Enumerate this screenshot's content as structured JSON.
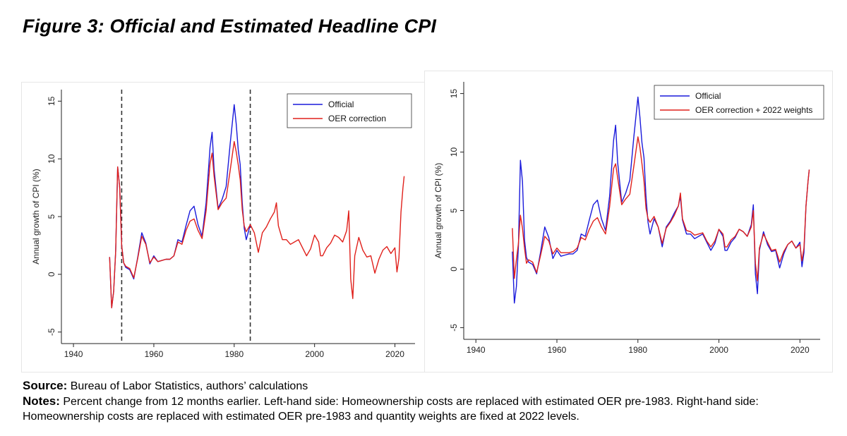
{
  "figure_title": "Figure 3: Official and Estimated Headline CPI",
  "source_label": "Source:",
  "source_text": "Bureau of Labor Statistics, authors’ calculations",
  "notes_label": "Notes:",
  "notes_text": "Percent change from 12 months earlier. Left-hand side: Homeownership costs are replaced with estimated OER pre-1983. Right-hand side: Homeownership costs are replaced with estimated OER pre-1983 and quantity weights are fixed at 2022 levels.",
  "colors": {
    "official": "#1a1adb",
    "correction": "#e0201b",
    "vline": "#333333"
  },
  "chart_data": [
    {
      "type": "line",
      "ylabel": "Annual growth of CPI (%)",
      "xlabel": "",
      "xlim": [
        1937,
        2025
      ],
      "ylim": [
        -6,
        16
      ],
      "xticks": [
        1940,
        1960,
        1980,
        2000,
        2020
      ],
      "yticks": [
        -5,
        0,
        5,
        10,
        15
      ],
      "legend_position": "top-right",
      "vlines": [
        1952,
        1984
      ],
      "vline_style": "dashed",
      "series": [
        {
          "name": "Official",
          "color": "#1a1adb",
          "x": [
            1949.0,
            1949.5,
            1950.0,
            1950.5,
            1951.0,
            1951.5,
            1952.0,
            1952.5,
            1953.0,
            1954.0,
            1955.0,
            1956.0,
            1957.0,
            1958.0,
            1959.0,
            1960.0,
            1961.0,
            1962.0,
            1963.0,
            1964.0,
            1965.0,
            1966.0,
            1967.0,
            1968.0,
            1969.0,
            1970.0,
            1971.0,
            1972.0,
            1973.0,
            1974.0,
            1974.5,
            1975.0,
            1976.0,
            1977.0,
            1978.0,
            1979.0,
            1980.0,
            1980.5,
            1981.0,
            1981.5,
            1982.0,
            1982.5,
            1983.0,
            1984.0
          ],
          "y": [
            1.5,
            -2.9,
            -1.5,
            2.0,
            9.3,
            7.5,
            2.5,
            1.0,
            0.6,
            0.4,
            -0.4,
            1.5,
            3.6,
            2.7,
            0.9,
            1.6,
            1.1,
            1.2,
            1.3,
            1.3,
            1.6,
            3.0,
            2.8,
            4.2,
            5.5,
            5.9,
            4.3,
            3.3,
            6.2,
            11.0,
            12.3,
            9.1,
            5.7,
            6.5,
            7.6,
            11.3,
            14.7,
            13.0,
            10.8,
            9.5,
            6.2,
            4.0,
            3.0,
            4.3
          ]
        },
        {
          "name": "OER correction",
          "color": "#e0201b",
          "x": [
            1949.0,
            1949.5,
            1950.0,
            1950.5,
            1951.0,
            1951.5,
            1952.0,
            1952.5,
            1953.0,
            1954.0,
            1955.0,
            1956.0,
            1957.0,
            1958.0,
            1959.0,
            1960.0,
            1961.0,
            1962.0,
            1963.0,
            1964.0,
            1965.0,
            1966.0,
            1967.0,
            1968.0,
            1969.0,
            1970.0,
            1971.0,
            1972.0,
            1973.0,
            1974.0,
            1974.5,
            1975.0,
            1976.0,
            1977.0,
            1978.0,
            1979.0,
            1980.0,
            1980.5,
            1981.0,
            1981.5,
            1982.0,
            1982.5,
            1983.0,
            1984.0,
            1985.0,
            1986.0,
            1987.0,
            1988.0,
            1989.0,
            1990.0,
            1990.5,
            1991.0,
            1992.0,
            1993.0,
            1994.0,
            1995.0,
            1996.0,
            1997.0,
            1998.0,
            1999.0,
            2000.0,
            2001.0,
            2001.5,
            2002.0,
            2003.0,
            2004.0,
            2005.0,
            2006.0,
            2007.0,
            2008.0,
            2008.5,
            2009.0,
            2009.5,
            2010.0,
            2011.0,
            2012.0,
            2013.0,
            2014.0,
            2015.0,
            2016.0,
            2017.0,
            2018.0,
            2019.0,
            2020.0,
            2020.5,
            2021.0,
            2021.5,
            2022.0,
            2022.3
          ],
          "y": [
            1.5,
            -2.9,
            -1.5,
            2.0,
            9.3,
            7.5,
            2.5,
            1.0,
            0.7,
            0.5,
            -0.3,
            1.4,
            3.3,
            2.6,
            1.0,
            1.5,
            1.1,
            1.2,
            1.3,
            1.3,
            1.6,
            2.8,
            2.6,
            3.8,
            4.6,
            4.8,
            3.8,
            3.1,
            5.5,
            9.6,
            10.5,
            8.5,
            5.6,
            6.2,
            6.6,
            9.0,
            11.5,
            10.6,
            9.5,
            8.2,
            5.6,
            4.2,
            3.7,
            4.3,
            3.6,
            1.9,
            3.6,
            4.1,
            4.8,
            5.4,
            6.2,
            4.2,
            3.0,
            3.0,
            2.6,
            2.8,
            3.0,
            2.3,
            1.6,
            2.2,
            3.4,
            2.8,
            1.6,
            1.6,
            2.3,
            2.7,
            3.4,
            3.2,
            2.8,
            3.8,
            5.5,
            -0.4,
            -2.1,
            1.6,
            3.2,
            2.1,
            1.5,
            1.6,
            0.1,
            1.3,
            2.1,
            2.4,
            1.8,
            2.3,
            0.2,
            1.4,
            5.4,
            7.5,
            8.5
          ]
        }
      ]
    },
    {
      "type": "line",
      "ylabel": "Annual growth of CPI (%)",
      "xlabel": "",
      "xlim": [
        1937,
        2025
      ],
      "ylim": [
        -6,
        16
      ],
      "xticks": [
        1940,
        1960,
        1980,
        2000,
        2020
      ],
      "yticks": [
        -5,
        0,
        5,
        10,
        15
      ],
      "legend_position": "top-right",
      "series": [
        {
          "name": "Official",
          "color": "#1a1adb",
          "x": [
            1949.0,
            1949.5,
            1950.0,
            1950.5,
            1951.0,
            1951.5,
            1952.0,
            1952.5,
            1953.0,
            1954.0,
            1955.0,
            1956.0,
            1957.0,
            1958.0,
            1959.0,
            1960.0,
            1961.0,
            1962.0,
            1963.0,
            1964.0,
            1965.0,
            1966.0,
            1967.0,
            1968.0,
            1969.0,
            1970.0,
            1971.0,
            1972.0,
            1973.0,
            1974.0,
            1974.5,
            1975.0,
            1976.0,
            1977.0,
            1978.0,
            1979.0,
            1980.0,
            1980.5,
            1981.0,
            1981.5,
            1982.0,
            1982.5,
            1983.0,
            1984.0,
            1985.0,
            1986.0,
            1987.0,
            1988.0,
            1989.0,
            1990.0,
            1990.5,
            1991.0,
            1992.0,
            1993.0,
            1994.0,
            1995.0,
            1996.0,
            1997.0,
            1998.0,
            1999.0,
            2000.0,
            2001.0,
            2001.5,
            2002.0,
            2003.0,
            2004.0,
            2005.0,
            2006.0,
            2007.0,
            2008.0,
            2008.5,
            2009.0,
            2009.5,
            2010.0,
            2011.0,
            2012.0,
            2013.0,
            2014.0,
            2015.0,
            2016.0,
            2017.0,
            2018.0,
            2019.0,
            2020.0,
            2020.5,
            2021.0,
            2021.5,
            2022.0,
            2022.3
          ],
          "y": [
            1.5,
            -2.9,
            -1.5,
            2.0,
            9.3,
            7.5,
            2.5,
            1.0,
            0.6,
            0.4,
            -0.4,
            1.5,
            3.6,
            2.7,
            0.9,
            1.6,
            1.1,
            1.2,
            1.3,
            1.3,
            1.6,
            3.0,
            2.8,
            4.2,
            5.5,
            5.9,
            4.3,
            3.3,
            6.2,
            11.0,
            12.3,
            9.1,
            5.7,
            6.5,
            7.6,
            11.3,
            14.7,
            13.0,
            10.8,
            9.5,
            6.2,
            4.0,
            3.0,
            4.3,
            3.6,
            1.9,
            3.6,
            4.1,
            4.8,
            5.4,
            6.2,
            4.2,
            3.0,
            3.0,
            2.6,
            2.8,
            3.0,
            2.3,
            1.6,
            2.2,
            3.4,
            2.8,
            1.6,
            1.6,
            2.3,
            2.7,
            3.4,
            3.2,
            2.8,
            3.8,
            5.5,
            -0.4,
            -2.1,
            1.6,
            3.2,
            2.1,
            1.5,
            1.6,
            0.1,
            1.3,
            2.1,
            2.4,
            1.8,
            2.3,
            0.2,
            1.4,
            5.4,
            7.5,
            8.5
          ]
        },
        {
          "name": "OER correction + 2022 weights",
          "color": "#e0201b",
          "x": [
            1949.0,
            1949.5,
            1950.0,
            1950.5,
            1951.0,
            1951.5,
            1952.0,
            1952.5,
            1953.0,
            1954.0,
            1955.0,
            1956.0,
            1957.0,
            1958.0,
            1959.0,
            1960.0,
            1961.0,
            1962.0,
            1963.0,
            1964.0,
            1965.0,
            1966.0,
            1967.0,
            1968.0,
            1969.0,
            1970.0,
            1971.0,
            1972.0,
            1973.0,
            1974.0,
            1974.5,
            1975.0,
            1976.0,
            1977.0,
            1978.0,
            1979.0,
            1980.0,
            1980.5,
            1981.0,
            1981.5,
            1982.0,
            1982.5,
            1983.0,
            1984.0,
            1985.0,
            1986.0,
            1987.0,
            1988.0,
            1989.0,
            1990.0,
            1990.5,
            1991.0,
            1992.0,
            1993.0,
            1994.0,
            1995.0,
            1996.0,
            1997.0,
            1998.0,
            1999.0,
            2000.0,
            2001.0,
            2001.5,
            2002.0,
            2003.0,
            2004.0,
            2005.0,
            2006.0,
            2007.0,
            2008.0,
            2008.5,
            2009.0,
            2009.5,
            2010.0,
            2011.0,
            2012.0,
            2013.0,
            2014.0,
            2015.0,
            2016.0,
            2017.0,
            2018.0,
            2019.0,
            2020.0,
            2020.5,
            2021.0,
            2021.5,
            2022.0,
            2022.3
          ],
          "y": [
            3.5,
            -0.8,
            0.8,
            2.2,
            4.6,
            3.5,
            1.8,
            0.5,
            0.8,
            0.6,
            -0.3,
            1.2,
            2.8,
            2.4,
            1.3,
            1.8,
            1.4,
            1.4,
            1.4,
            1.5,
            1.8,
            2.7,
            2.5,
            3.4,
            4.1,
            4.4,
            3.6,
            3.0,
            5.3,
            8.6,
            9.0,
            7.8,
            5.5,
            6.0,
            6.4,
            8.8,
            11.3,
            10.4,
            9.0,
            7.5,
            5.2,
            4.3,
            4.0,
            4.5,
            3.6,
            2.2,
            3.5,
            4.0,
            4.6,
            5.4,
            6.5,
            4.3,
            3.3,
            3.2,
            2.9,
            3.0,
            3.1,
            2.4,
            1.9,
            2.4,
            3.4,
            3.0,
            1.9,
            1.9,
            2.5,
            2.8,
            3.4,
            3.2,
            2.8,
            3.6,
            5.0,
            0.5,
            -1.0,
            1.8,
            3.0,
            2.3,
            1.6,
            1.7,
            0.6,
            1.5,
            2.1,
            2.4,
            1.8,
            2.1,
            0.7,
            1.8,
            5.4,
            7.5,
            8.5
          ]
        }
      ]
    }
  ]
}
